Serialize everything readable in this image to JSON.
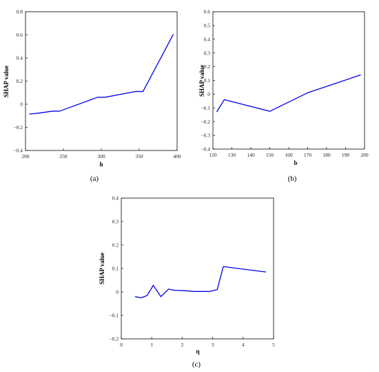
{
  "chart_data": [
    {
      "type": "line",
      "caption": "(a)",
      "xlabel": "h",
      "ylabel": "SHAP value",
      "xlim": [
        200,
        400
      ],
      "ylim": [
        -0.4,
        0.8
      ],
      "xticks": [
        200,
        250,
        300,
        350,
        400
      ],
      "yticks": [
        -0.4,
        -0.2,
        0,
        0.2,
        0.4,
        0.6,
        0.8
      ],
      "ytick_labels": [
        "−0.4",
        "−0.2",
        "0",
        "0.2",
        "0.4",
        "0.6",
        "0.8"
      ],
      "x": [
        205,
        220,
        235,
        245,
        295,
        305,
        345,
        355,
        395
      ],
      "y": [
        -0.085,
        -0.075,
        -0.06,
        -0.06,
        0.06,
        0.06,
        0.11,
        0.11,
        0.605
      ],
      "color": "#0000e6"
    },
    {
      "type": "line",
      "caption": "(b)",
      "xlabel": "b",
      "ylabel": "SHAP value",
      "xlim": [
        120,
        200
      ],
      "ylim": [
        -0.4,
        0.6
      ],
      "xticks": [
        120,
        130,
        140,
        150,
        160,
        170,
        180,
        190,
        200
      ],
      "yticks": [
        -0.4,
        -0.3,
        -0.2,
        -0.1,
        0,
        0.1,
        0.2,
        0.3,
        0.4,
        0.5,
        0.6
      ],
      "ytick_labels": [
        "−0.4",
        "−0.3",
        "−0.2",
        "−0.1",
        "0",
        "0.1",
        "0.2",
        "0.3",
        "0.4",
        "0.5",
        "0.6"
      ],
      "x": [
        122,
        126,
        150,
        170,
        198
      ],
      "y": [
        -0.13,
        -0.04,
        -0.125,
        0.01,
        0.14
      ],
      "color": "#0000e6"
    },
    {
      "type": "line",
      "caption": "(c)",
      "xlabel": "η",
      "ylabel": "SHAP value",
      "xlim": [
        0,
        5
      ],
      "ylim": [
        -0.2,
        0.4
      ],
      "xticks": [
        0,
        1,
        2,
        3,
        4,
        5
      ],
      "yticks": [
        -0.2,
        -0.1,
        0,
        0.1,
        0.2,
        0.3,
        0.4
      ],
      "ytick_labels": [
        "−0.2",
        "−0.1",
        "0",
        "0.1",
        "0.2",
        "0.3",
        "0.4"
      ],
      "x": [
        0.45,
        0.65,
        0.85,
        1.05,
        1.3,
        1.55,
        1.75,
        2.0,
        2.4,
        2.9,
        3.15,
        3.35,
        4.75
      ],
      "y": [
        -0.02,
        -0.025,
        -0.015,
        0.028,
        -0.02,
        0.012,
        0.007,
        0.006,
        0.002,
        0.002,
        0.01,
        0.108,
        0.085
      ],
      "color": "#0000e6"
    }
  ]
}
